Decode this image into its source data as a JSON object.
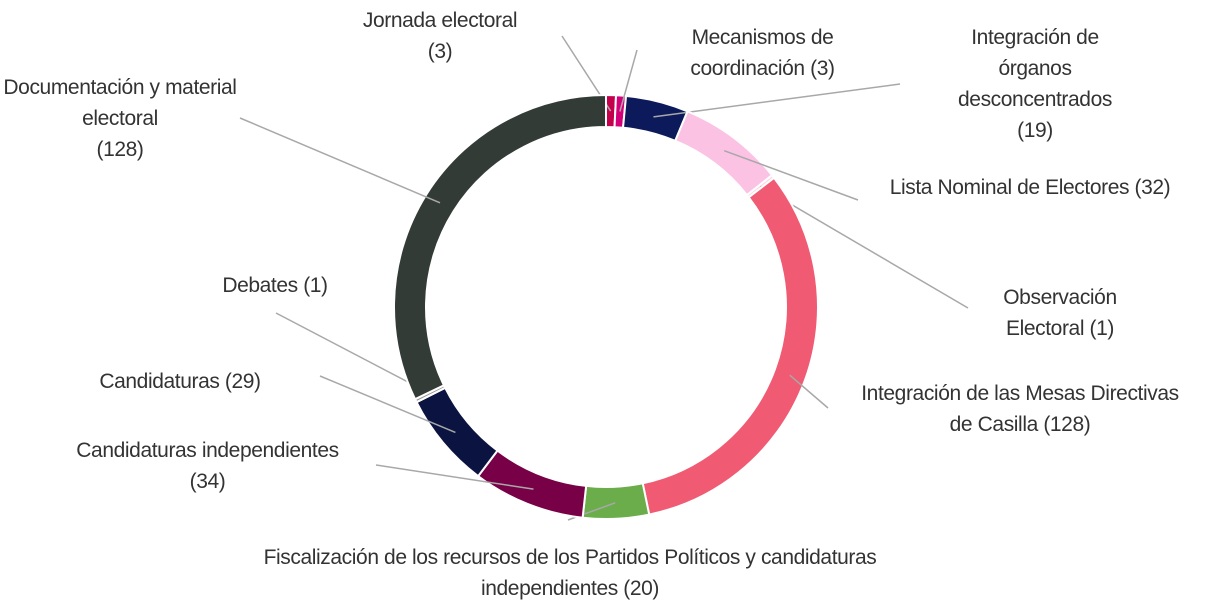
{
  "chart_data": {
    "type": "donut",
    "categories": [
      "Jornada electoral",
      "Mecanismos de coordinación",
      "Integración de órganos desconcentrados",
      "Lista Nominal de Electores",
      "Observación Electoral",
      "Integración de las Mesas Directivas de Casilla",
      "Fiscalización de los recursos de los Partidos Políticos y candidaturas independientes",
      "Candidaturas independientes",
      "Candidaturas",
      "Debates",
      "Documentación y material electoral"
    ],
    "values": [
      3,
      3,
      19,
      32,
      1,
      128,
      20,
      34,
      29,
      1,
      128
    ],
    "value_labels": [
      "(3)",
      "(3)",
      "(19)",
      "(32)",
      "(1)",
      "(128)",
      "(20)",
      "(34)",
      "(29)",
      "(1)",
      "(128)"
    ],
    "colors": [
      "#c4004c",
      "#d4007a",
      "#0c1a5c",
      "#fbc2e4",
      "#f7d6e8",
      "#f05a72",
      "#6aad4a",
      "#780046",
      "#0b1340",
      "#9a9a9a",
      "#333b37"
    ]
  }
}
